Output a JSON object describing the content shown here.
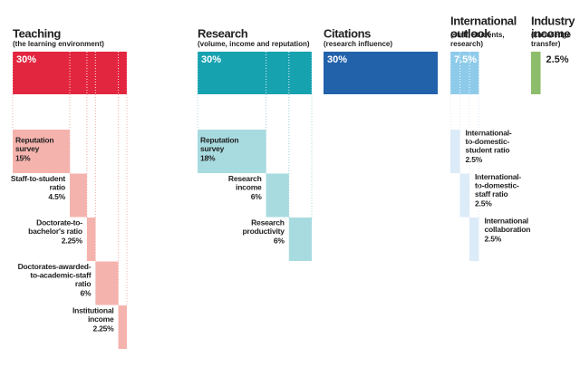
{
  "pillars": [
    {
      "title": [
        "Teaching"
      ],
      "subtitle": [
        "(the learning environment)"
      ],
      "value": 30,
      "value_label": "30%",
      "color": "#e3263f",
      "component_color": "#f5b3ad",
      "components": [
        {
          "label": [
            "Reputation",
            "survey"
          ],
          "value": 15,
          "value_label": "15%"
        },
        {
          "label": [
            "Staff-to-student",
            "ratio"
          ],
          "value": 4.5,
          "value_label": "4.5%"
        },
        {
          "label": [
            "Doctorate-to-",
            "bachelor's ratio"
          ],
          "value": 2.25,
          "value_label": "2.25%"
        },
        {
          "label": [
            "Doctorates-awarded-",
            "to-academic-staff",
            "ratio"
          ],
          "value": 6,
          "value_label": "6%"
        },
        {
          "label": [
            "Institutional",
            "income"
          ],
          "value": 2.25,
          "value_label": "2.25%"
        }
      ]
    },
    {
      "title": [
        "Research"
      ],
      "subtitle": [
        "(volume, income and reputation)"
      ],
      "value": 30,
      "value_label": "30%",
      "color": "#17a2b0",
      "component_color": "#a8dbe0",
      "components": [
        {
          "label": [
            "Reputation",
            "survey"
          ],
          "value": 18,
          "value_label": "18%"
        },
        {
          "label": [
            "Research",
            "income"
          ],
          "value": 6,
          "value_label": "6%"
        },
        {
          "label": [
            "Research",
            "productivity"
          ],
          "value": 6,
          "value_label": "6%"
        }
      ]
    },
    {
      "title": [
        "Citations"
      ],
      "subtitle": [
        "(research influence)"
      ],
      "value": 30,
      "value_label": "30%",
      "color": "#2262ab",
      "components": []
    },
    {
      "title": [
        "International",
        "outlook"
      ],
      "subtitle": [
        "(staff, students,",
        "research)"
      ],
      "value": 7.5,
      "value_label": "7.5%",
      "color": "#8ecbea",
      "component_color": "#dcebf8",
      "components": [
        {
          "label": [
            "International-",
            "to-domestic-",
            "student ratio"
          ],
          "value": 2.5,
          "value_label": "2.5%"
        },
        {
          "label": [
            "International-",
            "to-domestic-",
            "staff ratio"
          ],
          "value": 2.5,
          "value_label": "2.5%"
        },
        {
          "label": [
            "International",
            "collaboration"
          ],
          "value": 2.5,
          "value_label": "2.5%"
        }
      ]
    },
    {
      "title": [
        "Industry",
        "income"
      ],
      "subtitle": [
        "(knowledge",
        "transfer)"
      ],
      "value": 2.5,
      "value_label": "2.5%",
      "color": "#8dbd6a",
      "components": []
    }
  ]
}
